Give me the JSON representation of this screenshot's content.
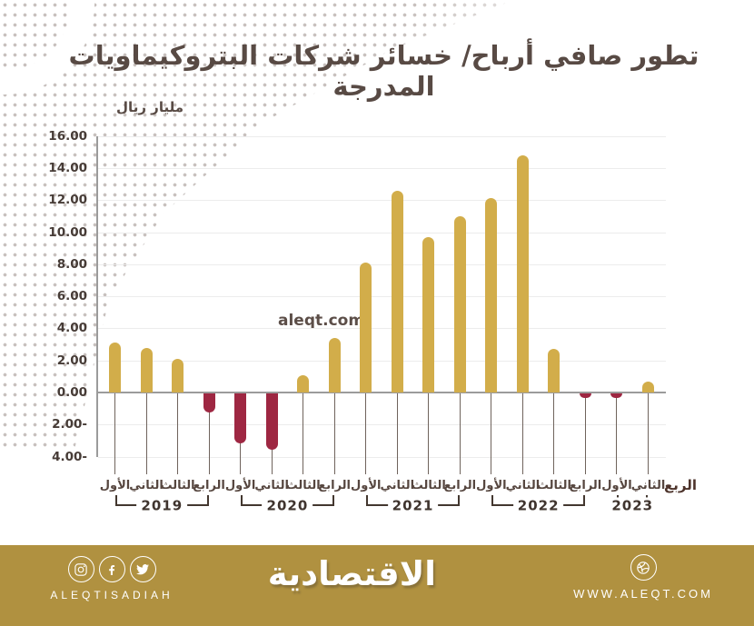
{
  "watermark": "aleqt.com",
  "chart_data": {
    "type": "bar",
    "title": "تطور صافي أرباح/ خسائر شركات البتروكيماويات المدرجة",
    "ylabel": "مليار ريال",
    "xlabel": "الربع",
    "ylim": [
      -4,
      16
    ],
    "grid": true,
    "y_tick_labels": [
      "16.00",
      "14.00",
      "12.00",
      "10.00",
      "8.00",
      "6.00",
      "4.00",
      "2.00",
      "0.00",
      "2.00-",
      "4.00-"
    ],
    "quarter_names": [
      "الأول",
      "الثاني",
      "الثالث",
      "الرابع"
    ],
    "groups": [
      {
        "year": "2019",
        "values": [
          3.1,
          2.8,
          2.1,
          -1.2
        ]
      },
      {
        "year": "2020",
        "values": [
          -3.1,
          -3.5,
          1.1,
          3.4
        ]
      },
      {
        "year": "2021",
        "values": [
          8.1,
          12.6,
          9.7,
          11.0
        ]
      },
      {
        "year": "2022",
        "values": [
          12.1,
          14.8,
          2.7,
          -0.3
        ]
      },
      {
        "year": "2023",
        "values": [
          -0.3,
          0.7
        ]
      }
    ],
    "colors": {
      "positive": "#d2ad4a",
      "negative": "#9e2742"
    }
  },
  "footer": {
    "social_handle": "ALEQTISADIAH",
    "brand": "الاقتصادية",
    "website": "WWW.ALEQT.COM",
    "icons": [
      "instagram-icon",
      "facebook-icon",
      "twitter-icon",
      "dribbble-icon"
    ],
    "background": "#b09140"
  }
}
